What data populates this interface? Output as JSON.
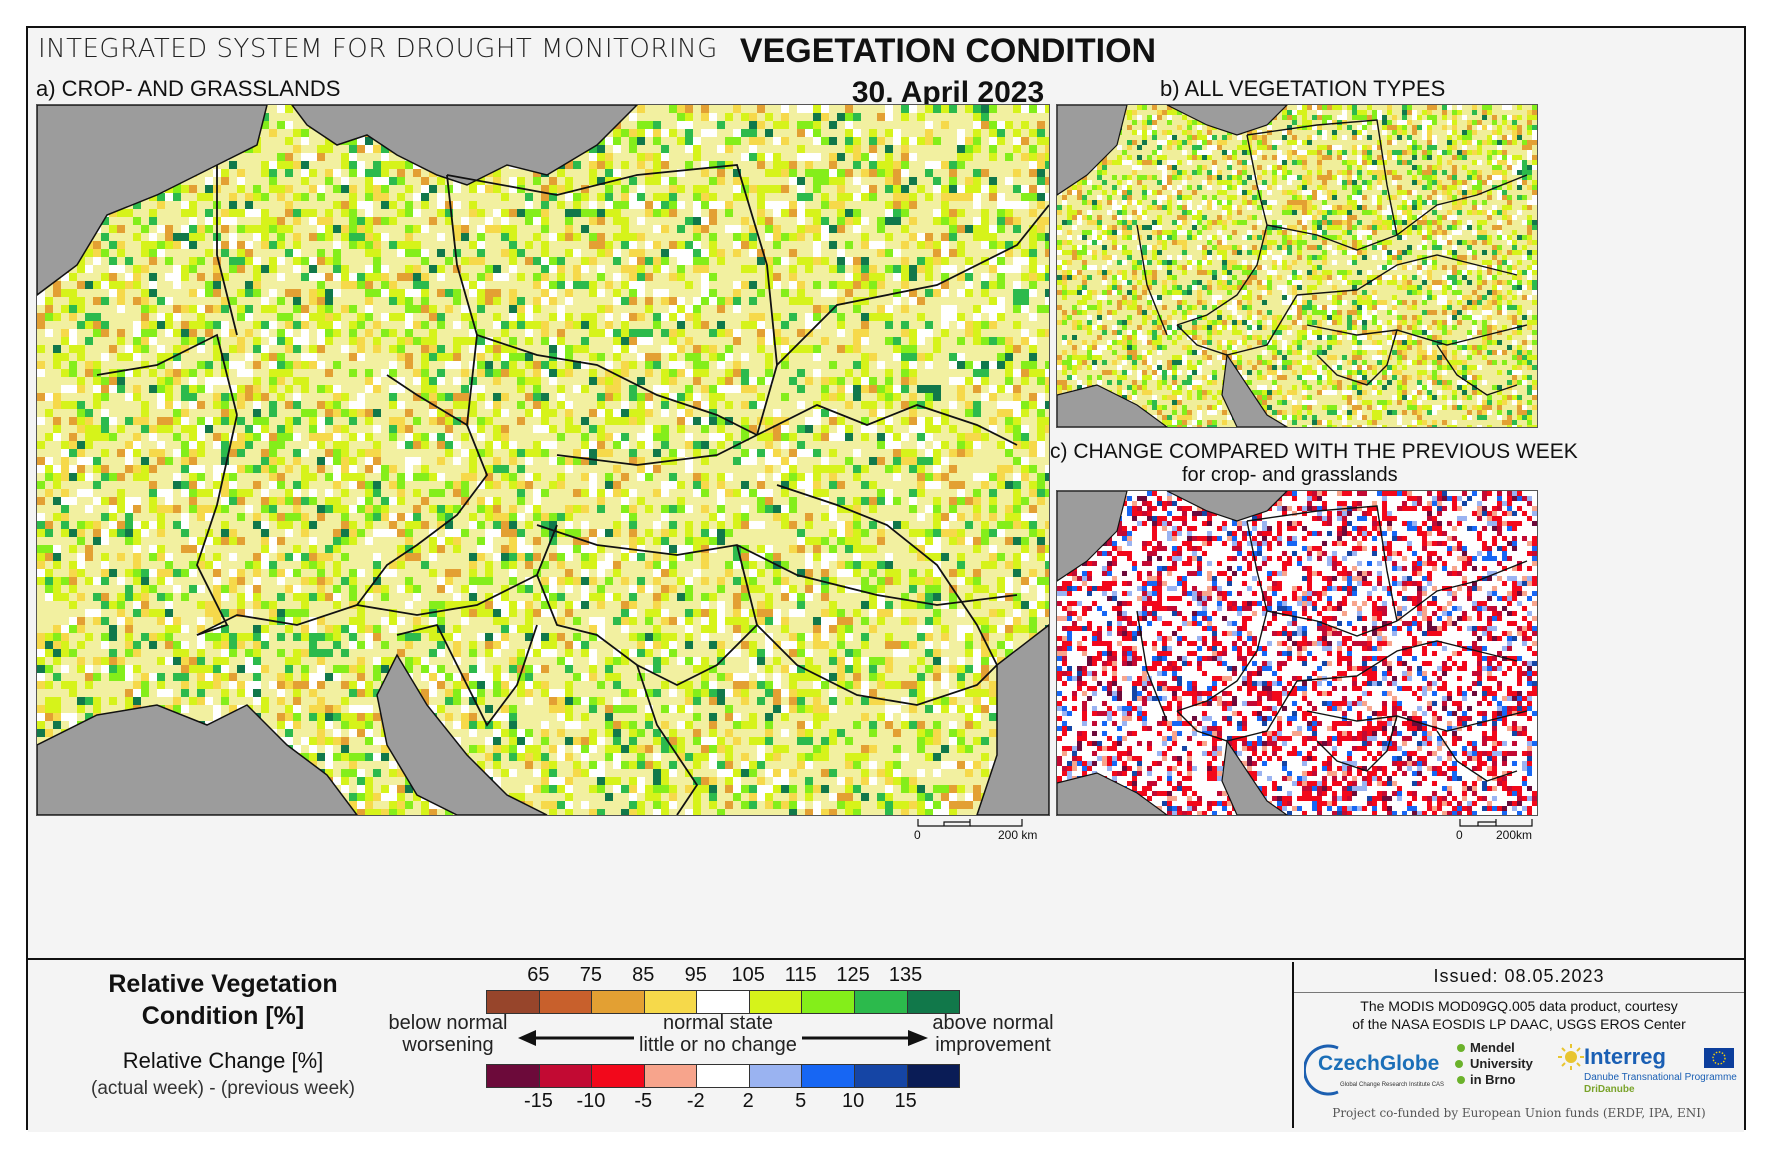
{
  "header": {
    "system_title": "INTEGRATED SYSTEM FOR DROUGHT MONITORING",
    "main_title": "VEGETATION CONDITION",
    "date": "30. April 2023"
  },
  "panels": {
    "a": {
      "label": "a) CROP- AND GRASSLANDS",
      "scale_start": "0",
      "scale_end": "200 km"
    },
    "b": {
      "label": "b) ALL VEGETATION TYPES"
    },
    "c": {
      "label": "c) CHANGE COMPARED WITH THE PREVIOUS WEEK",
      "sublabel": "for crop- and grasslands",
      "scale_start": "0",
      "scale_end": "200km"
    }
  },
  "legend": {
    "condition_title_line1": "Relative Vegetation",
    "condition_title_line2": "Condition [%]",
    "change_title": "Relative Change [%]",
    "change_subtitle": "(actual week) - (previous week)",
    "condition_ticks": [
      "65",
      "75",
      "85",
      "95",
      "105",
      "115",
      "125",
      "135"
    ],
    "condition_colors": [
      "#97452b",
      "#c8602c",
      "#e3a033",
      "#f6d94a",
      "#ffffff",
      "#d6f31a",
      "#84ee1a",
      "#2cba4c",
      "#11784a"
    ],
    "change_ticks": [
      "-15",
      "-10",
      "-5",
      "-2",
      "2",
      "5",
      "10",
      "15"
    ],
    "change_colors": [
      "#6c0a3a",
      "#c20a33",
      "#f2081b",
      "#f7a48c",
      "#ffffff",
      "#9ab3f1",
      "#1766f3",
      "#1545a5",
      "#0a1c56"
    ],
    "left_line1": "below normal",
    "left_line2": "worsening",
    "center_line1": "normal state",
    "center_line2": "little or no change",
    "right_line1": "above normal",
    "right_line2": "improvement"
  },
  "footer": {
    "issued": "Issued: 08.05.2023",
    "credit_line1": "The MODIS MOD09GQ.005 data product, courtesy",
    "credit_line2": "of the NASA EOSDIS LP DAAC, USGS EROS Center",
    "czechglobe": "CzechGlobe",
    "czechglobe_sub": "Global Change Research Institute CAS",
    "mendel_line1": "Mendel",
    "mendel_line2": "University",
    "mendel_line3": "in Brno",
    "interreg": "Interreg",
    "interreg_sub": "Danube Transnational Programme",
    "dridanube": "DriDanube",
    "cofunded": "Project co-funded by European Union funds (ERDF, IPA, ENI)"
  }
}
